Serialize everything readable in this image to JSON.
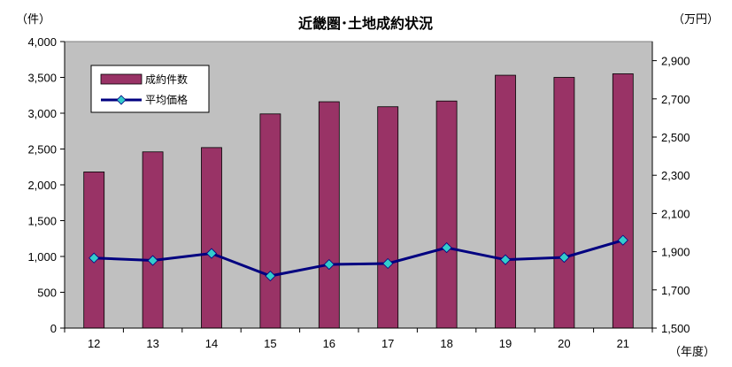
{
  "chart_data": {
    "type": "bar+line",
    "title": "近畿圏･土地成約状況",
    "categories": [
      "12",
      "13",
      "14",
      "15",
      "16",
      "17",
      "18",
      "19",
      "20",
      "21"
    ],
    "xlabel": "（年度）",
    "y_left": {
      "label": "（件）",
      "lim": [
        0,
        4000
      ],
      "ticks": [
        "0",
        "500",
        "1,000",
        "1,500",
        "2,000",
        "2,500",
        "3,000",
        "3,500",
        "4,000"
      ]
    },
    "y_right": {
      "label": "（万円）",
      "lim": [
        1500,
        3000
      ],
      "ticks": [
        "1,500",
        "1,700",
        "1,900",
        "2,100",
        "2,300",
        "2,500",
        "2,700",
        "2,900"
      ]
    },
    "series": [
      {
        "name": "成約件数",
        "type": "bar",
        "axis": "left",
        "color": "#993366",
        "values": [
          2180,
          2460,
          2520,
          2990,
          3160,
          3090,
          3170,
          3530,
          3500,
          3550
        ]
      },
      {
        "name": "平均価格",
        "type": "line",
        "axis": "right",
        "color": "#000080",
        "marker_color": "#33CCCC",
        "values": [
          1867,
          1854,
          1891,
          1773,
          1833,
          1838,
          1921,
          1858,
          1870,
          1960
        ]
      }
    ],
    "grid": false,
    "legend": "top-left",
    "plot_background": "#C0C0C0"
  }
}
